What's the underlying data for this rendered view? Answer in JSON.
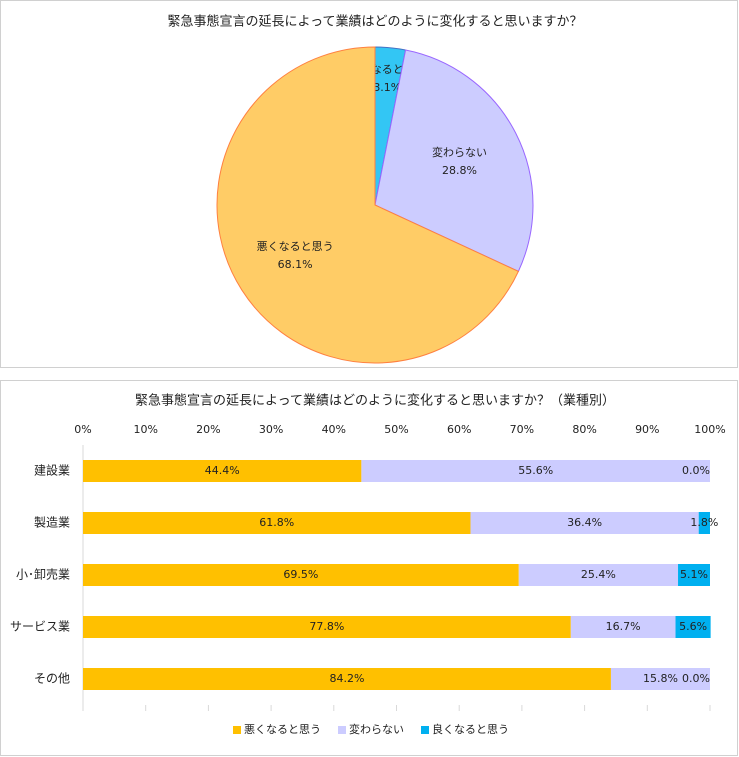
{
  "chart_data": [
    {
      "type": "pie",
      "title": "緊急事態宣言の延長によって業績はどのように変化すると思いますか？",
      "categories": [
        "良くなると思う",
        "変わらない",
        "悪くなると思う"
      ],
      "values": [
        3.1,
        28.8,
        68.1
      ],
      "value_labels": [
        "3.1%",
        "28.8%",
        "68.1%"
      ],
      "colors": [
        "#33c6f4",
        "#ccccff",
        "#ffcc66"
      ],
      "edge_colors": [
        "#4472c4",
        "#9966ff",
        "#ff8040"
      ]
    },
    {
      "type": "stacked_barh",
      "title": "緊急事態宣言の延長によって業績はどのように変化すると思いますか？（業種別）",
      "categories": [
        "建設業",
        "製造業",
        "小･卸売業",
        "サービス業",
        "その他"
      ],
      "series": [
        {
          "name": "悪くなると思う",
          "color": "#ffc000",
          "values": [
            44.4,
            61.8,
            69.5,
            77.8,
            84.2
          ],
          "value_labels": [
            "44.4%",
            "61.8%",
            "69.5%",
            "77.8%",
            "84.2%"
          ]
        },
        {
          "name": "変わらない",
          "color": "#ccccff",
          "values": [
            55.6,
            36.4,
            25.4,
            16.7,
            15.8
          ],
          "value_labels": [
            "55.6%",
            "36.4%",
            "25.4%",
            "16.7%",
            "15.8%"
          ]
        },
        {
          "name": "良くなると思う",
          "color": "#00b0f0",
          "values": [
            0.0,
            1.8,
            5.1,
            5.6,
            0.0
          ],
          "value_labels": [
            "0.0%",
            "1.8%",
            "5.1%",
            "5.6%",
            "0.0%"
          ]
        }
      ],
      "xlim": [
        0,
        100
      ],
      "xticks": [
        {
          "value": 0,
          "label": "0%"
        },
        {
          "value": 10,
          "label": "10%"
        },
        {
          "value": 20,
          "label": "20%"
        },
        {
          "value": 30,
          "label": "30%"
        },
        {
          "value": 40,
          "label": "40%"
        },
        {
          "value": 50,
          "label": "50%"
        },
        {
          "value": 60,
          "label": "60%"
        },
        {
          "value": 70,
          "label": "70%"
        },
        {
          "value": 80,
          "label": "80%"
        },
        {
          "value": 90,
          "label": "90%"
        },
        {
          "value": 100,
          "label": "100%"
        }
      ],
      "legend": "bottom"
    }
  ]
}
